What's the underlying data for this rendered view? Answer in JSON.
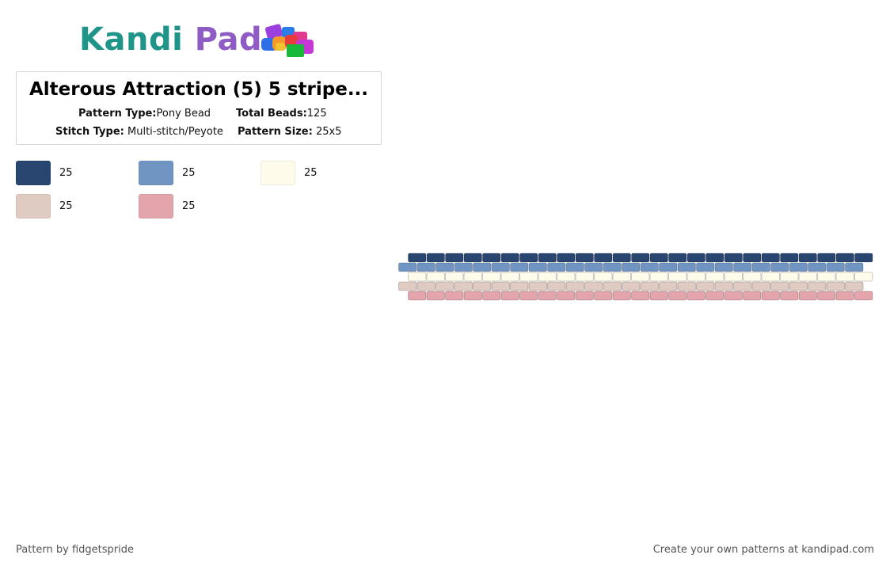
{
  "logo": {
    "part1": "Kandi",
    "part2": "Pad"
  },
  "pattern_info": {
    "title": "Alterous Attraction (5) 5 stripe...",
    "pattern_type_label": "Pattern Type:",
    "pattern_type_value": "Pony Bead",
    "total_beads_label": "Total Beads:",
    "total_beads_value": "125",
    "stitch_type_label": "Stitch Type:",
    "stitch_type_value": "Multi-stitch/Peyote",
    "pattern_size_label": "Pattern Size:",
    "pattern_size_value": "25x5"
  },
  "palette": [
    {
      "color": "#284670",
      "count": "25"
    },
    {
      "color": "#7195c3",
      "count": "25"
    },
    {
      "color": "#fffbeb",
      "count": "25"
    },
    {
      "color": "#dfcbc2",
      "count": "25"
    },
    {
      "color": "#e4a4ab",
      "count": "25"
    }
  ],
  "bead_pattern": {
    "columns": 25,
    "rows": 5,
    "row_colors": [
      "#284670",
      "#7195c3",
      "#fffbeb",
      "#dfcbc2",
      "#e4a4ab"
    ]
  },
  "footer": {
    "credit": "Pattern by fidgetspride",
    "promo": "Create your own patterns at kandipad.com"
  }
}
